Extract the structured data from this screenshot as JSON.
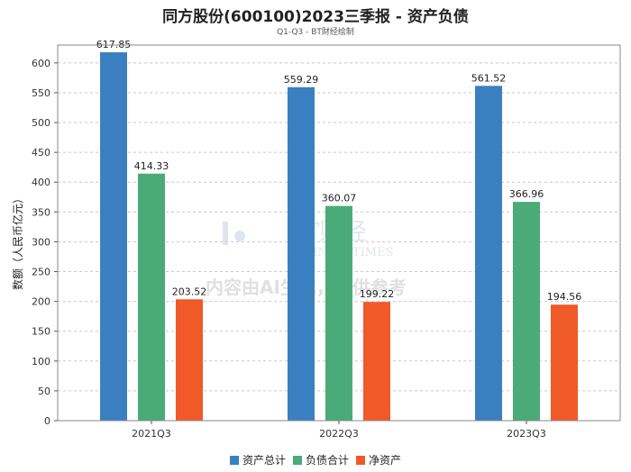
{
  "chart_data": {
    "type": "bar",
    "title": "同方股份(600100)2023三季报 - 资产负债",
    "subtitle": "Q1-Q3 - BT财经绘制",
    "ylabel": "数额（人民币亿元）",
    "xlabel": "",
    "categories": [
      "2021Q3",
      "2022Q3",
      "2023Q3"
    ],
    "series": [
      {
        "name": "资产总计",
        "color": "#3a80c1",
        "values": [
          617.85,
          559.29,
          561.52
        ]
      },
      {
        "name": "负债合计",
        "color": "#4aab79",
        "values": [
          414.33,
          360.07,
          366.96
        ]
      },
      {
        "name": "净资产",
        "color": "#f05a28",
        "values": [
          203.52,
          199.22,
          194.56
        ]
      }
    ],
    "ylim": [
      0,
      630
    ],
    "yticks": [
      0,
      50,
      100,
      150,
      200,
      250,
      300,
      350,
      400,
      450,
      500,
      550,
      600
    ],
    "grid": true,
    "legend": "bottom"
  },
  "watermark": {
    "logo_text": "BT财经",
    "logo_subtext": "BUSINESSTIMES",
    "notice": "内容由AI生成，仅供参考"
  }
}
